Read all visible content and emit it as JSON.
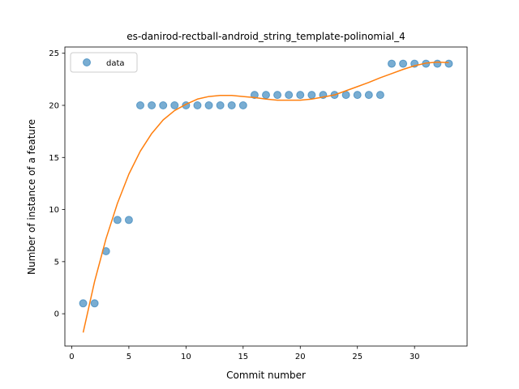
{
  "chart_data": {
    "type": "scatter",
    "title": "es-danirod-rectball-android_string_template-polinomial_4",
    "xlabel": "Commit number",
    "ylabel": "Number of instance of a feature",
    "xlim": [
      -0.6,
      34.6
    ],
    "ylim": [
      -3.1,
      25.6
    ],
    "xticks": [
      0,
      5,
      10,
      15,
      20,
      25,
      30
    ],
    "yticks": [
      0,
      5,
      10,
      15,
      20,
      25
    ],
    "grid": false,
    "legend": {
      "placement": "top-left",
      "entries": [
        "data"
      ]
    },
    "series": [
      {
        "name": "data",
        "kind": "points",
        "color": "#1f77b4",
        "x": [
          1,
          2,
          3,
          4,
          5,
          6,
          7,
          8,
          9,
          10,
          11,
          12,
          13,
          14,
          15,
          16,
          17,
          18,
          19,
          20,
          21,
          22,
          23,
          24,
          25,
          26,
          27,
          28,
          29,
          30,
          31,
          32,
          33
        ],
        "y": [
          1,
          1,
          6,
          9,
          9,
          20,
          20,
          20,
          20,
          20,
          20,
          20,
          20,
          20,
          20,
          21,
          21,
          21,
          21,
          21,
          21,
          21,
          21,
          21,
          21,
          21,
          21,
          24,
          24,
          24,
          24,
          24,
          24
        ]
      },
      {
        "kind": "fit-line",
        "color": "#ff7f0e",
        "x": [
          1,
          2,
          3,
          4,
          5,
          6,
          7,
          8,
          9,
          10,
          11,
          12,
          13,
          14,
          15,
          16,
          17,
          18,
          19,
          20,
          21,
          22,
          23,
          24,
          25,
          26,
          27,
          28,
          29,
          30,
          31,
          32,
          33
        ],
        "y": [
          -1.8,
          3.1,
          7.2,
          10.6,
          13.4,
          15.6,
          17.3,
          18.6,
          19.5,
          20.1,
          20.6,
          20.85,
          20.95,
          20.95,
          20.85,
          20.75,
          20.6,
          20.5,
          20.5,
          20.5,
          20.6,
          20.8,
          21.0,
          21.4,
          21.8,
          22.2,
          22.65,
          23.05,
          23.45,
          23.8,
          24.05,
          24.15,
          24.1
        ]
      }
    ]
  }
}
